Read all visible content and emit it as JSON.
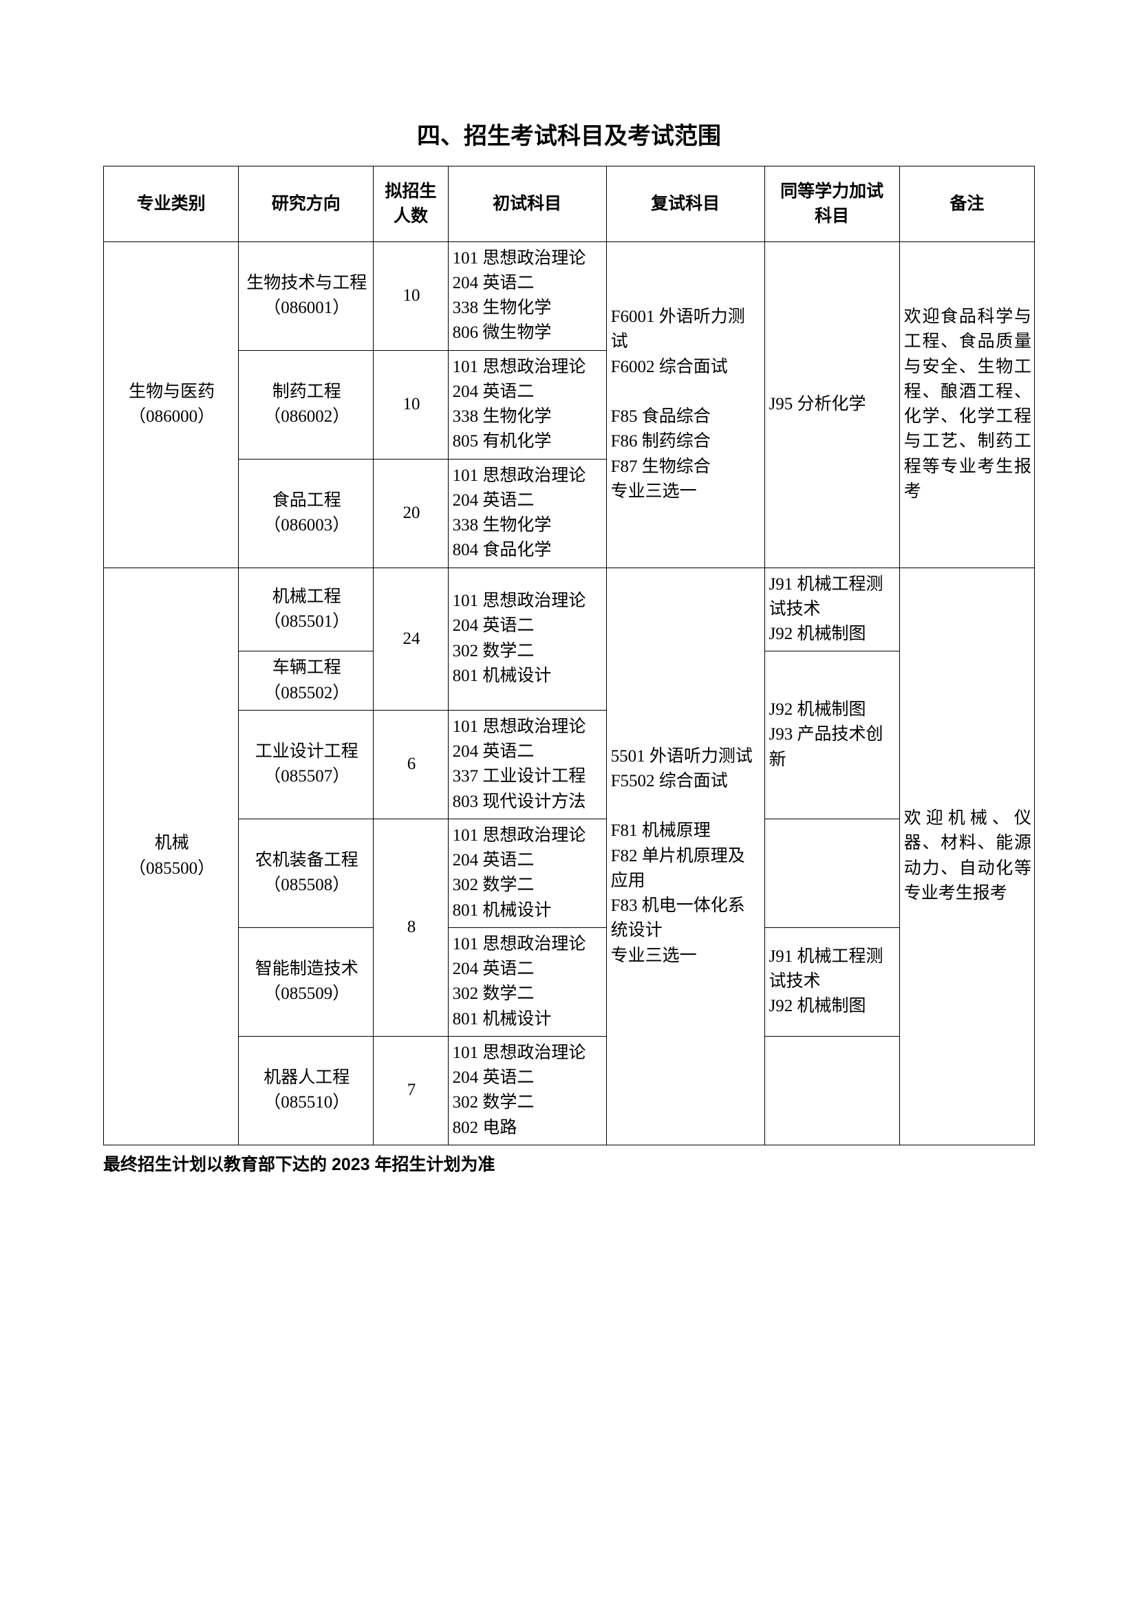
{
  "title": "四、招生考试科目及考试范围",
  "headers": {
    "h1": "专业类别",
    "h2": "研究方向",
    "h3": "拟招生\n人数",
    "h4": "初试科目",
    "h5": "复试科目",
    "h6": "同等学力加试\n科目",
    "h7": "备注"
  },
  "cat1": {
    "name": "生物与医药\n（086000）",
    "retest": "F6001 外语听力测试\nF6002 综合面试\n\nF85 食品综合\nF86 制药综合\nF87 生物综合\n专业三选一",
    "eq": "J95 分析化学",
    "note": "欢迎食品科学与工程、食品质量与安全、生物工程、酿酒工程、化学、化学工程与工艺、制药工程等专业考生报考",
    "rows": {
      "r1": {
        "dir": "生物技术与工程\n（086001）",
        "num": "10",
        "prelim": "101 思想政治理论\n204 英语二\n338 生物化学\n806 微生物学"
      },
      "r2": {
        "dir": "制药工程\n（086002）",
        "num": "10",
        "prelim": "101 思想政治理论\n204 英语二\n338 生物化学\n805 有机化学"
      },
      "r3": {
        "dir": "食品工程\n（086003）",
        "num": "20",
        "prelim": "101 思想政治理论\n204 英语二\n338 生物化学\n804 食品化学"
      }
    }
  },
  "cat2": {
    "name": "机械\n（085500）",
    "retest": "5501 外语听力测试\nF5502 综合面试\n\nF81 机械原理\nF82 单片机原理及应用\nF83 机电一体化系统设计\n专业三选一",
    "note": "欢迎机械、仪器、材料、能源动力、自动化等专业考生报考",
    "eq_a": "J91 机械工程测试技术\nJ92 机械制图",
    "eq_b": "J92 机械制图\nJ93 产品技术创新",
    "eq_c": "",
    "eq_d": "J91 机械工程测试技术\nJ92 机械制图",
    "eq_e": "",
    "rows": {
      "r1": {
        "dir": "机械工程\n（085501）"
      },
      "r2": {
        "dir": "车辆工程\n（085502）"
      },
      "num12": "24",
      "prelim12": "101 思想政治理论\n204 英语二\n302 数学二\n801 机械设计",
      "r3": {
        "dir": "工业设计工程（085507）",
        "num": "6",
        "prelim": "101 思想政治理论\n204 英语二\n337 工业设计工程\n803 现代设计方法"
      },
      "r4": {
        "dir": "农机装备工程（085508）",
        "prelim": "101 思想政治理论\n204 英语二\n302 数学二\n801 机械设计"
      },
      "num45": "8",
      "r5": {
        "dir": "智能制造技术（085509）",
        "prelim": "101 思想政治理论\n204 英语二\n302 数学二\n801 机械设计"
      },
      "r6": {
        "dir": "机器人工程\n（085510）",
        "num": "7",
        "prelim": "101 思想政治理论\n204 英语二\n302 数学二\n802 电路"
      }
    }
  },
  "footnote": "最终招生计划以教育部下达的 2023 年招生计划为准"
}
